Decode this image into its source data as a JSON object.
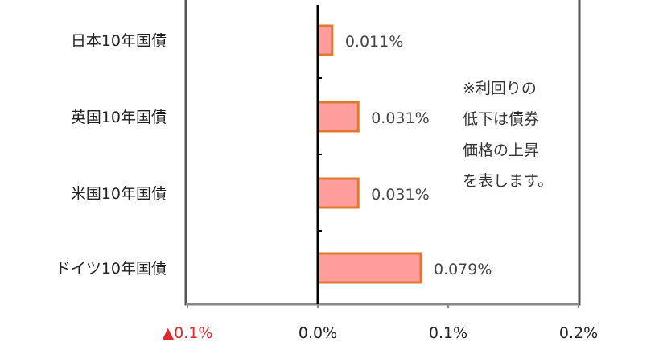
{
  "chart_data": {
    "type": "bar",
    "orientation": "horizontal",
    "categories": [
      "日本10年国債",
      "英国10年国債",
      "米国10年国債",
      "ドイツ10年国債"
    ],
    "values": [
      0.011,
      0.031,
      0.031,
      0.079
    ],
    "data_labels": [
      "0.011%",
      "0.031%",
      "0.031%",
      "0.079%"
    ],
    "xlim": [
      -0.1,
      0.2
    ],
    "x_ticks": [
      -0.1,
      0.0,
      0.1,
      0.2
    ],
    "x_tick_labels": [
      "▲0.1%",
      "0.0%",
      "0.1%",
      "0.2%"
    ],
    "negative_tick_color": "#e2262b",
    "grid": false,
    "bar_fill": "#ff9d9d",
    "bar_stroke": "#e07a2a",
    "frame_color": "#555555",
    "annotation": [
      "※利回りの",
      "低下は債券",
      "価格の上昇",
      "を表します。"
    ]
  }
}
